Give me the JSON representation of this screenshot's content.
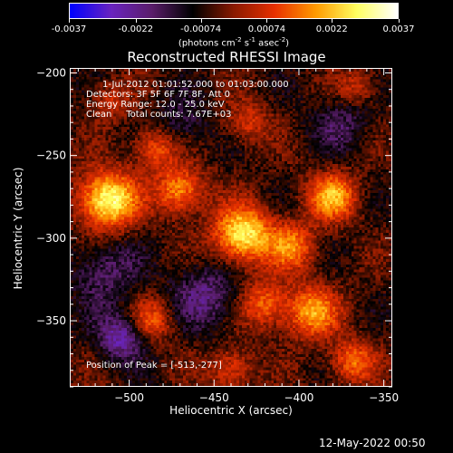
{
  "colorbar": {
    "ticks": [
      "-0.0037",
      "-0.0022",
      "-0.00074",
      "0.00074",
      "0.0022",
      "0.0037"
    ],
    "tick_values": [
      -0.0037,
      -0.0022,
      -0.00074,
      0.00074,
      0.0022,
      0.0037
    ],
    "units_text": "(photons cm",
    "units_exp1": "-2",
    "units_s": " s",
    "units_exp2": "-1",
    "units_asec": " asec",
    "units_exp3": "-2",
    "units_close": ")",
    "colors": [
      "#0000ff",
      "#6a24c0",
      "#5a1d6a",
      "#000000",
      "#8a1a00",
      "#e83000",
      "#ff9a00",
      "#ffff60",
      "#ffffff"
    ]
  },
  "chart_data": {
    "type": "heatmap",
    "title": "Reconstructed RHESSI Image",
    "xlabel": "Heliocentric X (arcsec)",
    "ylabel": "Heliocentric Y (arcsec)",
    "xlim": [
      -535,
      -345
    ],
    "ylim": [
      -390,
      -197
    ],
    "x_ticks": [
      -500,
      -450,
      -400,
      -350
    ],
    "y_ticks": [
      -200,
      -250,
      -300,
      -350
    ],
    "peak": [
      -513,
      -277
    ],
    "sources": [
      {
        "x": -513,
        "y": -277,
        "amp": 0.0037,
        "width": 12
      },
      {
        "x": -470,
        "y": -271,
        "amp": 0.0024,
        "width": 10
      },
      {
        "x": -485,
        "y": -245,
        "amp": 0.0018,
        "width": 9
      },
      {
        "x": -433,
        "y": -298,
        "amp": 0.0034,
        "width": 12
      },
      {
        "x": -404,
        "y": -305,
        "amp": 0.002,
        "width": 10
      },
      {
        "x": -380,
        "y": -275,
        "amp": 0.0026,
        "width": 10
      },
      {
        "x": -392,
        "y": -345,
        "amp": 0.0024,
        "width": 11
      },
      {
        "x": -368,
        "y": -375,
        "amp": 0.002,
        "width": 9
      },
      {
        "x": -420,
        "y": -340,
        "amp": 0.0019,
        "width": 10
      },
      {
        "x": -487,
        "y": -350,
        "amp": 0.0017,
        "width": 9
      },
      {
        "x": -440,
        "y": -380,
        "amp": 0.0016,
        "width": 9
      },
      {
        "x": -512,
        "y": -217,
        "amp": 0.0012,
        "width": 8
      },
      {
        "x": -430,
        "y": -230,
        "amp": 0.0013,
        "width": 9
      },
      {
        "x": -365,
        "y": -208,
        "amp": 0.0012,
        "width": 8
      },
      {
        "x": -515,
        "y": -320,
        "amp": -0.0012,
        "width": 14
      },
      {
        "x": -455,
        "y": -335,
        "amp": -0.0014,
        "width": 14
      },
      {
        "x": -375,
        "y": -230,
        "amp": -0.001,
        "width": 12
      },
      {
        "x": -505,
        "y": -360,
        "amp": -0.002,
        "width": 10
      },
      {
        "x": -470,
        "y": -230,
        "amp": -0.0009,
        "width": 12
      }
    ]
  },
  "info": {
    "line1": "1-Jul-2012 01:01:52.000 to 01:03:00.000",
    "line2": "Detectors: 3F 5F 6F 7F 8F, Att 0",
    "line3": "Energy Range: 12.0 - 25.0 keV",
    "line4": "Clean     Total counts: 7.67E+03",
    "peak_text": "Position of Peak = [-513,-277]"
  },
  "timestamp": "12-May-2022 00:50"
}
